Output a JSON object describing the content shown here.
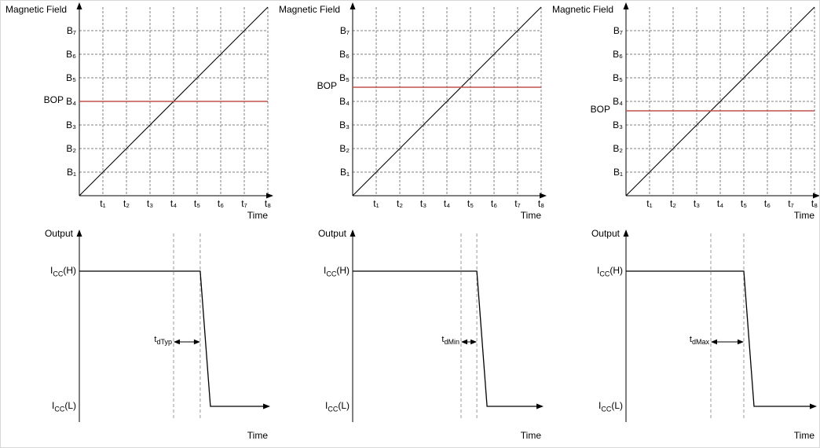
{
  "colors": {
    "axis": "#000000",
    "grid": "#808080",
    "dash_guide": "#999999",
    "bop_line": "#C0504D"
  },
  "chart_data": [
    {
      "id": "field-vs-time-typical",
      "type": "line",
      "title": "",
      "xlabel": "Time",
      "ylabel": "Magnetic Field",
      "threshold_label": "BOP",
      "x_ticks": [
        "t₁",
        "t₂",
        "t₃",
        "t₄",
        "t₅",
        "t₆",
        "t₇",
        "t₈"
      ],
      "y_ticks": [
        "B₁",
        "B₂",
        "B₃",
        "B₄",
        "B₅",
        "B₆",
        "B₇"
      ],
      "xlim": [
        0,
        8
      ],
      "ylim": [
        0,
        8
      ],
      "grid": "dashed",
      "series": [
        {
          "name": "applied-magnetic-field",
          "color": "#000000",
          "x": [
            0,
            8
          ],
          "y": [
            0,
            8
          ]
        },
        {
          "name": "bop-threshold",
          "color": "#C0504D",
          "x": [
            0,
            8
          ],
          "y": [
            4,
            4
          ]
        }
      ]
    },
    {
      "id": "output-vs-time-typical",
      "type": "line",
      "title": "",
      "xlabel": "Time",
      "ylabel": "Output",
      "high_label_parts": {
        "pre": "I",
        "sub": "CC",
        "post": "(H)"
      },
      "low_label_parts": {
        "pre": "I",
        "sub": "CC",
        "post": "(L)"
      },
      "delay_label_parts": {
        "pre": "t",
        "sub": "dTyp"
      },
      "xlim": [
        0,
        8
      ],
      "series": [
        {
          "name": "output-current",
          "color": "#000000",
          "x": [
            0,
            5.13,
            5.57,
            8
          ],
          "y": [
            "ICC(H)",
            "ICC(H)",
            "ICC(L)",
            "ICC(L)"
          ]
        }
      ],
      "annotations": [
        {
          "type": "delay-interval",
          "label": "tdTyp",
          "x_from": 4.0,
          "x_to": 5.13
        }
      ]
    },
    {
      "id": "field-vs-time-minimum",
      "type": "line",
      "title": "",
      "xlabel": "Time",
      "ylabel": "Magnetic Field",
      "threshold_label": "BOP",
      "x_ticks": [
        "t₁",
        "t₂",
        "t₃",
        "t₄",
        "t₅",
        "t₆",
        "t₇",
        "t₈"
      ],
      "y_ticks": [
        "B₁",
        "B₂",
        "B₃",
        "B₄",
        "B₅",
        "B₆",
        "B₇"
      ],
      "xlim": [
        0,
        8
      ],
      "ylim": [
        0,
        8
      ],
      "grid": "dashed",
      "series": [
        {
          "name": "applied-magnetic-field",
          "color": "#000000",
          "x": [
            0,
            8
          ],
          "y": [
            0,
            8
          ]
        },
        {
          "name": "bop-threshold",
          "color": "#C0504D",
          "x": [
            0,
            8
          ],
          "y": [
            4.6,
            4.6
          ]
        }
      ]
    },
    {
      "id": "output-vs-time-minimum",
      "type": "line",
      "title": "",
      "xlabel": "Time",
      "ylabel": "Output",
      "high_label_parts": {
        "pre": "I",
        "sub": "CC",
        "post": "(H)"
      },
      "low_label_parts": {
        "pre": "I",
        "sub": "CC",
        "post": "(L)"
      },
      "delay_label_parts": {
        "pre": "t",
        "sub": "dMin"
      },
      "xlim": [
        0,
        8
      ],
      "series": [
        {
          "name": "output-current",
          "color": "#000000",
          "x": [
            0,
            5.27,
            5.7,
            8
          ],
          "y": [
            "ICC(H)",
            "ICC(H)",
            "ICC(L)",
            "ICC(L)"
          ]
        }
      ],
      "annotations": [
        {
          "type": "delay-interval",
          "label": "tdMin",
          "x_from": 4.6,
          "x_to": 5.27
        }
      ]
    },
    {
      "id": "field-vs-time-maximum",
      "type": "line",
      "title": "",
      "xlabel": "Time",
      "ylabel": "Magnetic Field",
      "threshold_label": "BOP",
      "x_ticks": [
        "t₁",
        "t₂",
        "t₃",
        "t₄",
        "t₅",
        "t₆",
        "t₇",
        "t₈"
      ],
      "y_ticks": [
        "B₁",
        "B₂",
        "B₃",
        "B₄",
        "B₅",
        "B₆",
        "B₇"
      ],
      "xlim": [
        0,
        8
      ],
      "ylim": [
        0,
        8
      ],
      "grid": "dashed",
      "series": [
        {
          "name": "applied-magnetic-field",
          "color": "#000000",
          "x": [
            0,
            8
          ],
          "y": [
            0,
            8
          ]
        },
        {
          "name": "bop-threshold",
          "color": "#C0504D",
          "x": [
            0,
            8
          ],
          "y": [
            3.6,
            3.6
          ]
        }
      ]
    },
    {
      "id": "output-vs-time-maximum",
      "type": "line",
      "title": "",
      "xlabel": "Time",
      "ylabel": "Output",
      "high_label_parts": {
        "pre": "I",
        "sub": "CC",
        "post": "(H)"
      },
      "low_label_parts": {
        "pre": "I",
        "sub": "CC",
        "post": "(L)"
      },
      "delay_label_parts": {
        "pre": "t",
        "sub": "dMax"
      },
      "xlim": [
        0,
        8
      ],
      "series": [
        {
          "name": "output-current",
          "color": "#000000",
          "x": [
            0,
            5.0,
            5.43,
            8
          ],
          "y": [
            "ICC(H)",
            "ICC(H)",
            "ICC(L)",
            "ICC(L)"
          ]
        }
      ],
      "annotations": [
        {
          "type": "delay-interval",
          "label": "tdMax",
          "x_from": 3.6,
          "x_to": 5.0
        }
      ]
    }
  ]
}
